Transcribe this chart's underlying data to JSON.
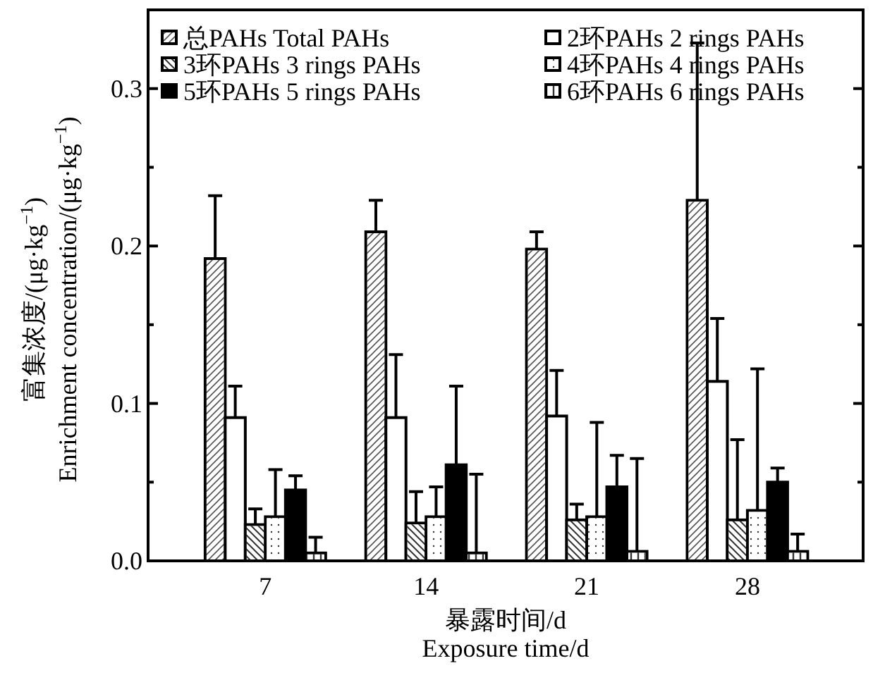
{
  "chart_data": {
    "type": "bar",
    "xlabel": "暴露时间/d\nExposure time/d",
    "ylabel": "富集浓度/(μg·kg$^{−1}$)\nEnrichment concentration/(μg·kg$^{−1}$)",
    "categories": [
      "7",
      "14",
      "21",
      "28"
    ],
    "series": [
      {
        "name": "总PAHs Total PAHs",
        "color": "#ffffff",
        "values": [
          0.192,
          0.209,
          0.198,
          0.229
        ],
        "errors": [
          [
            0.192,
            0.232
          ],
          [
            0.209,
            0.229
          ],
          [
            0.198,
            0.209
          ],
          [
            0.229,
            0.329
          ]
        ]
      },
      {
        "name": "2环PAHs 2 rings PAHs",
        "color": "#ffffff",
        "values": [
          0.091,
          0.091,
          0.092,
          0.114
        ],
        "errors": [
          [
            0.091,
            0.111
          ],
          [
            0.091,
            0.131
          ],
          [
            0.092,
            0.121
          ],
          [
            0.114,
            0.154
          ]
        ]
      },
      {
        "name": "3环PAHs 3 rings PAHs",
        "color": "#ffffff",
        "values": [
          0.023,
          0.024,
          0.026,
          0.026
        ],
        "errors": [
          [
            0.023,
            0.033
          ],
          [
            0.024,
            0.044
          ],
          [
            0.026,
            0.036
          ],
          [
            0.026,
            0.077
          ]
        ]
      },
      {
        "name": "4环PAHs 4 rings PAHs",
        "color": "#ffffff",
        "values": [
          0.028,
          0.028,
          0.028,
          0.032
        ],
        "errors": [
          [
            0.028,
            0.058
          ],
          [
            0.028,
            0.047
          ],
          [
            0.028,
            0.088
          ],
          [
            0.032,
            0.122
          ]
        ]
      },
      {
        "name": "5环PAHs 5 rings PAHs",
        "color": "#000000",
        "values": [
          0.045,
          0.061,
          0.047,
          0.05
        ],
        "errors": [
          [
            0.045,
            0.054
          ],
          [
            0.061,
            0.111
          ],
          [
            0.047,
            0.067
          ],
          [
            0.05,
            0.059
          ]
        ]
      },
      {
        "name": "6环PAHs 6 rings PAHs",
        "color": "#ffffff",
        "values": [
          0.005,
          0.005,
          0.006,
          0.006
        ],
        "errors": [
          [
            0.005,
            0.015
          ],
          [
            0.005,
            0.055
          ],
          [
            0.006,
            0.065
          ],
          [
            0.006,
            0.017
          ]
        ]
      }
    ],
    "ylim": [
      0,
      0.35
    ],
    "yticks": [
      {
        "value": 0,
        "label": "0.0"
      },
      {
        "value": 0.05,
        "label": null
      },
      {
        "value": 0.1,
        "label": "0.1"
      },
      {
        "value": 0.15,
        "label": null
      },
      {
        "value": 0.2,
        "label": "0.2"
      },
      {
        "value": 0.25,
        "label": null
      },
      {
        "value": 0.3,
        "label": "0.3"
      }
    ],
    "legend": "top",
    "grid": false
  }
}
